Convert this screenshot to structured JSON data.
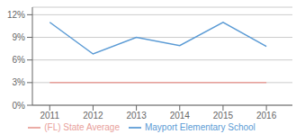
{
  "chart_data": {
    "type": "line",
    "x": [
      2011,
      2012,
      2013,
      2014,
      2015,
      2016
    ],
    "series": [
      {
        "name": "Mayport Elementary School",
        "color": "#5b9bd5",
        "values": [
          11.0,
          6.8,
          9.0,
          7.9,
          11.0,
          7.8
        ]
      },
      {
        "name": "(FL) State Average",
        "color": "#e8a09a",
        "values": [
          3.0,
          3.0,
          3.0,
          3.0,
          3.0,
          3.0
        ]
      }
    ],
    "xlim": [
      2010.6,
      2016.6
    ],
    "xticks": [
      2011,
      2012,
      2013,
      2014,
      2015,
      2016
    ],
    "ylim": [
      0,
      13
    ],
    "yticks": [
      {
        "value": 0,
        "label": "0%"
      },
      {
        "value": 3,
        "label": "3%"
      },
      {
        "value": 6,
        "label": "6%"
      },
      {
        "value": 9,
        "label": "9%"
      },
      {
        "value": 12,
        "label": "12%"
      }
    ],
    "grid": true,
    "legend": "bottom"
  }
}
